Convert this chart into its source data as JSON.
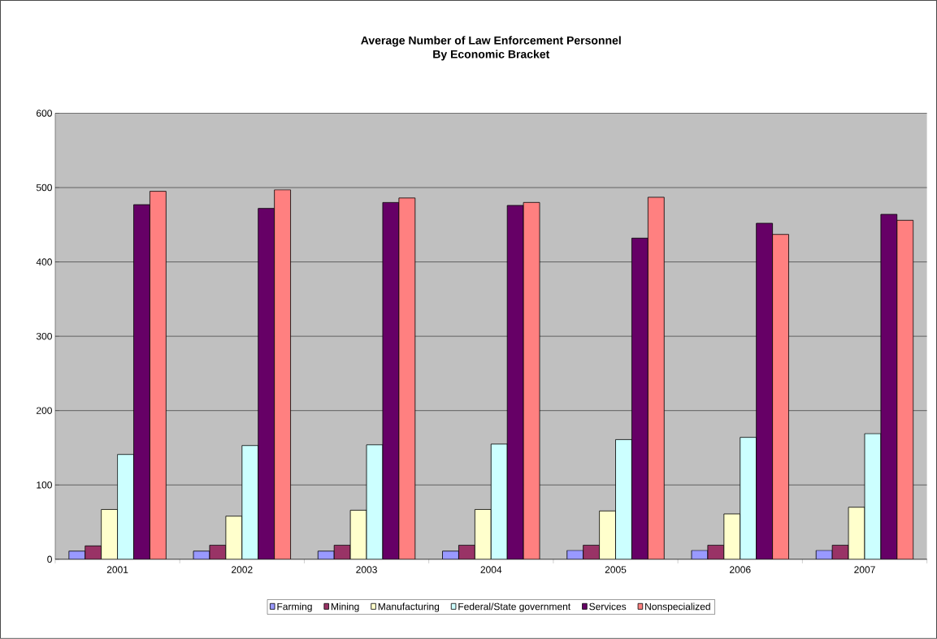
{
  "chart_data": {
    "type": "bar",
    "title": "Average Number of Law Enforcement Personnel\nBy Economic Bracket",
    "categories": [
      "2001",
      "2002",
      "2003",
      "2004",
      "2005",
      "2006",
      "2007"
    ],
    "series": [
      {
        "name": "Farming",
        "color": "#9999ff",
        "values": [
          11,
          11,
          11,
          11,
          12,
          12,
          12
        ]
      },
      {
        "name": "Mining",
        "color": "#993366",
        "values": [
          18,
          19,
          19,
          19,
          19,
          19,
          19
        ]
      },
      {
        "name": "Manufacturing",
        "color": "#ffffcc",
        "values": [
          67,
          58,
          66,
          67,
          65,
          61,
          70
        ]
      },
      {
        "name": "Federal/State government",
        "color": "#ccffff",
        "values": [
          141,
          153,
          154,
          155,
          161,
          164,
          169
        ]
      },
      {
        "name": "Services",
        "color": "#660066",
        "values": [
          477,
          472,
          480,
          476,
          432,
          452,
          464
        ]
      },
      {
        "name": "Nonspecialized",
        "color": "#ff8080",
        "values": [
          495,
          497,
          486,
          480,
          487,
          437,
          456
        ]
      }
    ],
    "ylim": [
      0,
      600
    ],
    "yticks": [
      0,
      100,
      200,
      300,
      400,
      500,
      600
    ],
    "grid": "y",
    "legend": "bottom"
  }
}
